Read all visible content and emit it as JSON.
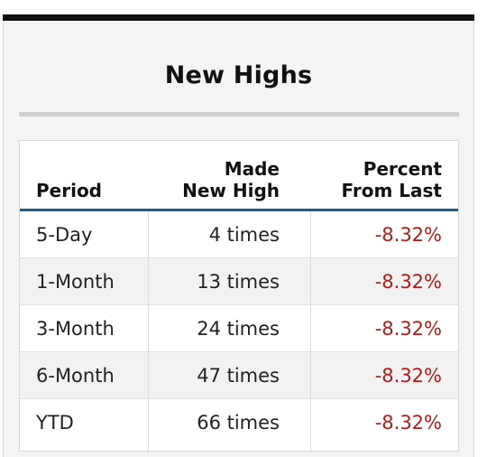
{
  "title": "New Highs",
  "columns": {
    "period": "Period",
    "made_line1": "Made",
    "made_line2": "New High",
    "pct_line1": "Percent",
    "pct_line2": "From Last"
  },
  "rows": [
    {
      "period": "5-Day",
      "made": "4 times",
      "pct": "-8.32%"
    },
    {
      "period": "1-Month",
      "made": "13 times",
      "pct": "-8.32%"
    },
    {
      "period": "3-Month",
      "made": "24 times",
      "pct": "-8.32%"
    },
    {
      "period": "6-Month",
      "made": "47 times",
      "pct": "-8.32%"
    },
    {
      "period": "YTD",
      "made": "66 times",
      "pct": "-8.32%"
    }
  ],
  "colors": {
    "header_rule": "#1f5b97",
    "negative": "#b01c1c"
  }
}
